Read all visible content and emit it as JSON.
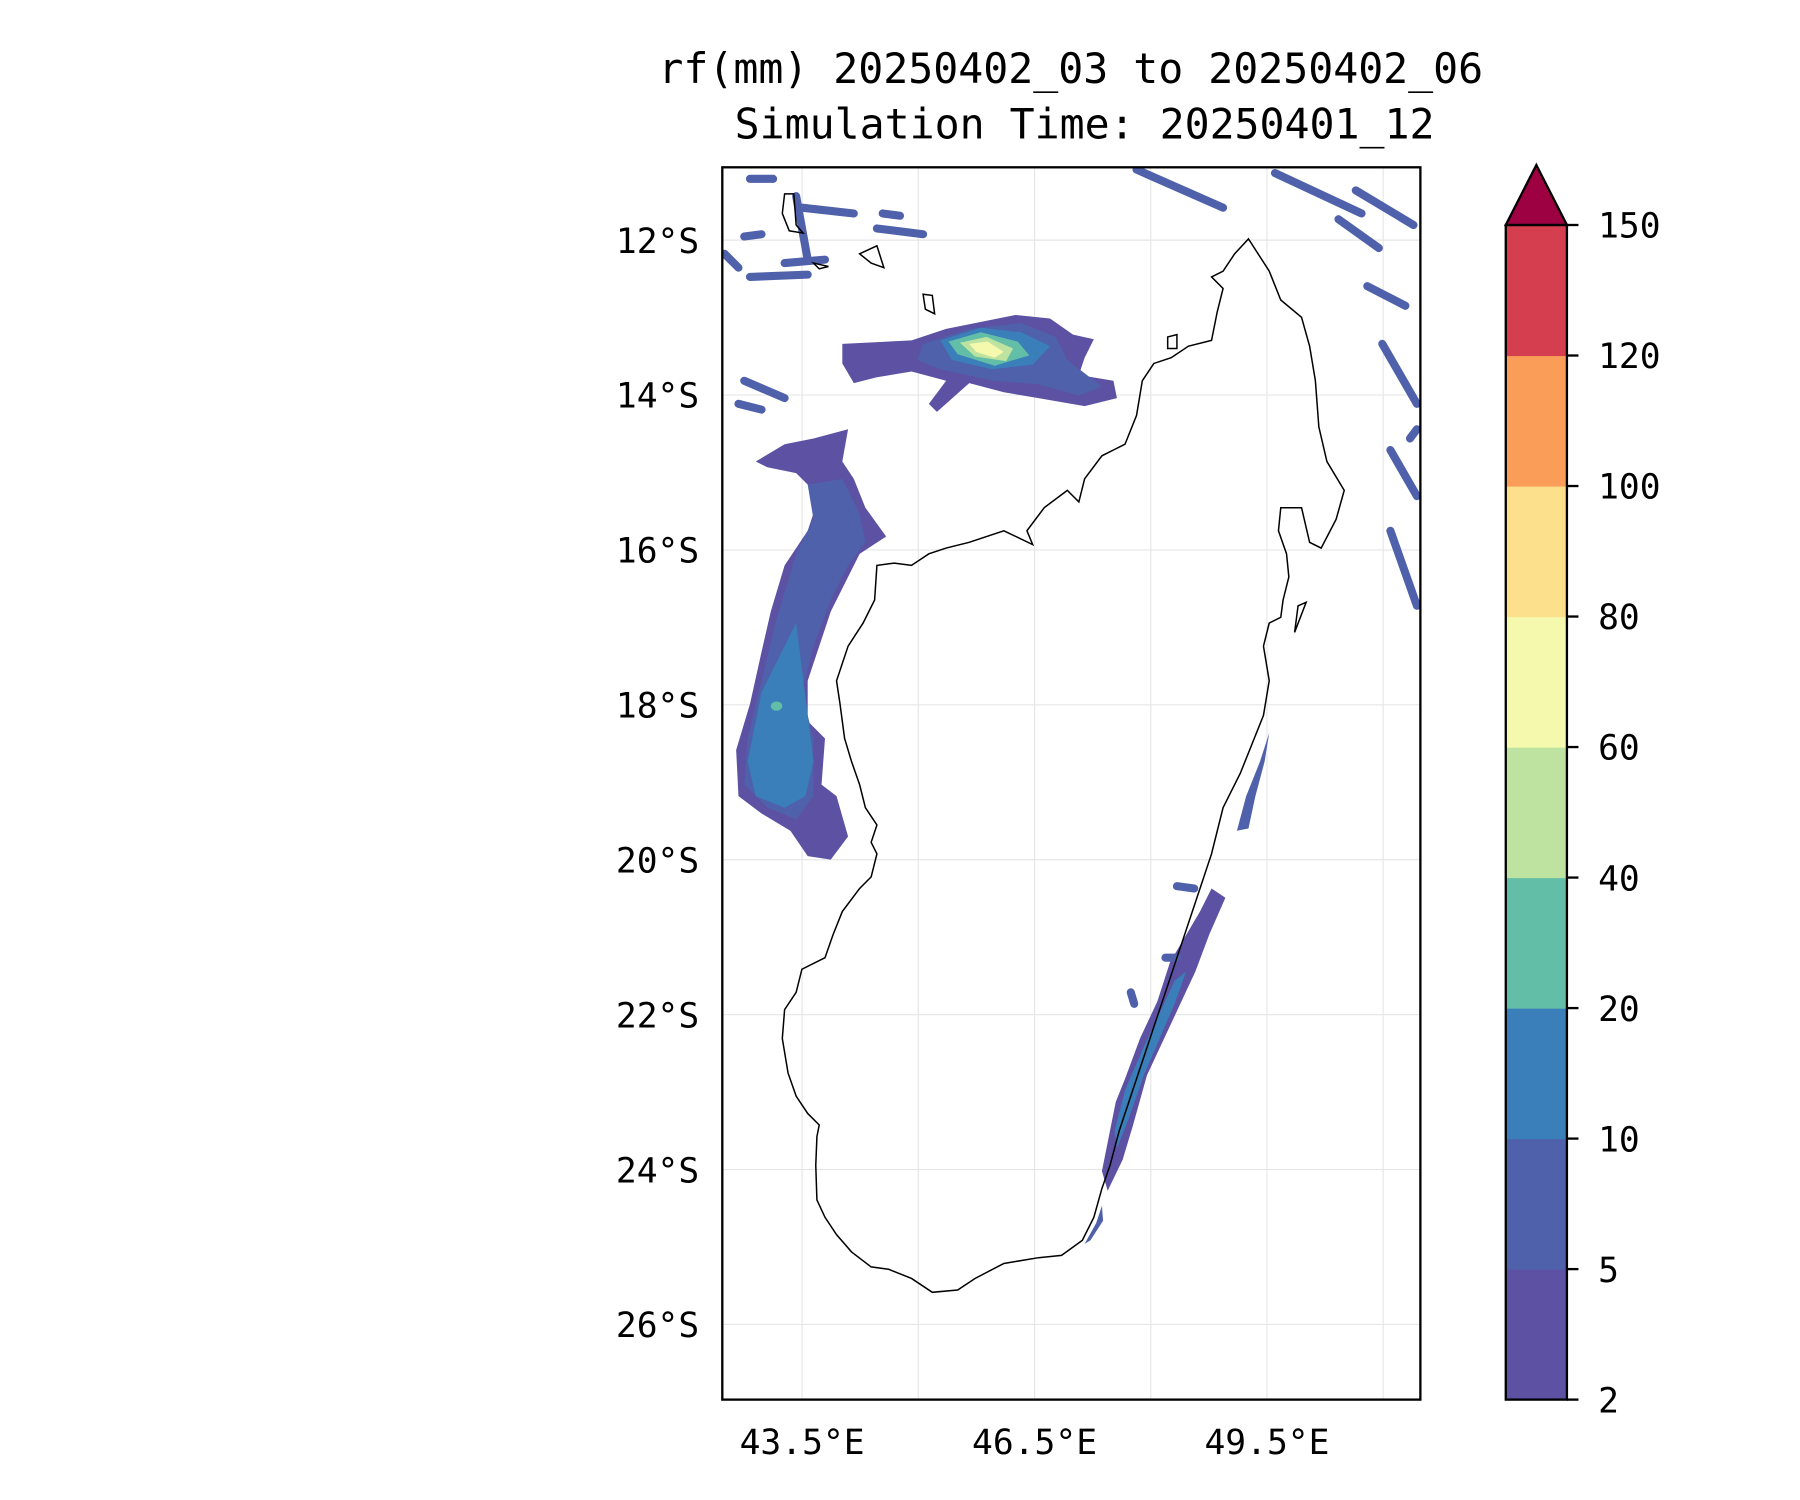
{
  "title": {
    "line1": "rf(mm) 20250402_03 to 20250402_06",
    "line2": "Simulation Time: 20250401_12"
  },
  "map": {
    "lon_range": [
      42.47,
      51.48
    ],
    "lat_range": [
      -26.97,
      -11.06
    ],
    "y_ticks": [
      {
        "value": -12,
        "label": "12°S"
      },
      {
        "value": -14,
        "label": "14°S"
      },
      {
        "value": -16,
        "label": "16°S"
      },
      {
        "value": -18,
        "label": "18°S"
      },
      {
        "value": -20,
        "label": "20°S"
      },
      {
        "value": -22,
        "label": "22°S"
      },
      {
        "value": -24,
        "label": "24°S"
      },
      {
        "value": -26,
        "label": "26°S"
      }
    ],
    "x_ticks": [
      {
        "value": 43.5,
        "label": "43.5°E"
      },
      {
        "value": 46.5,
        "label": "46.5°E"
      },
      {
        "value": 49.5,
        "label": "49.5°E"
      }
    ],
    "x_gridlines": [
      43.5,
      45,
      46.5,
      48,
      49.5,
      51
    ],
    "grid_color": "#e6e6e6",
    "coast_color": "#000000"
  },
  "colorbar": {
    "levels": [
      "2",
      "5",
      "10",
      "20",
      "40",
      "60",
      "80",
      "100",
      "120",
      "150"
    ],
    "colors": [
      "#5c51a3",
      "#4f61aa",
      "#3a7fb9",
      "#63bea8",
      "#bee3a0",
      "#f4f9ae",
      "#fce08c",
      "#f99d59",
      "#d53e4f"
    ],
    "extend_color": "#9e0142",
    "extend": "max"
  }
}
